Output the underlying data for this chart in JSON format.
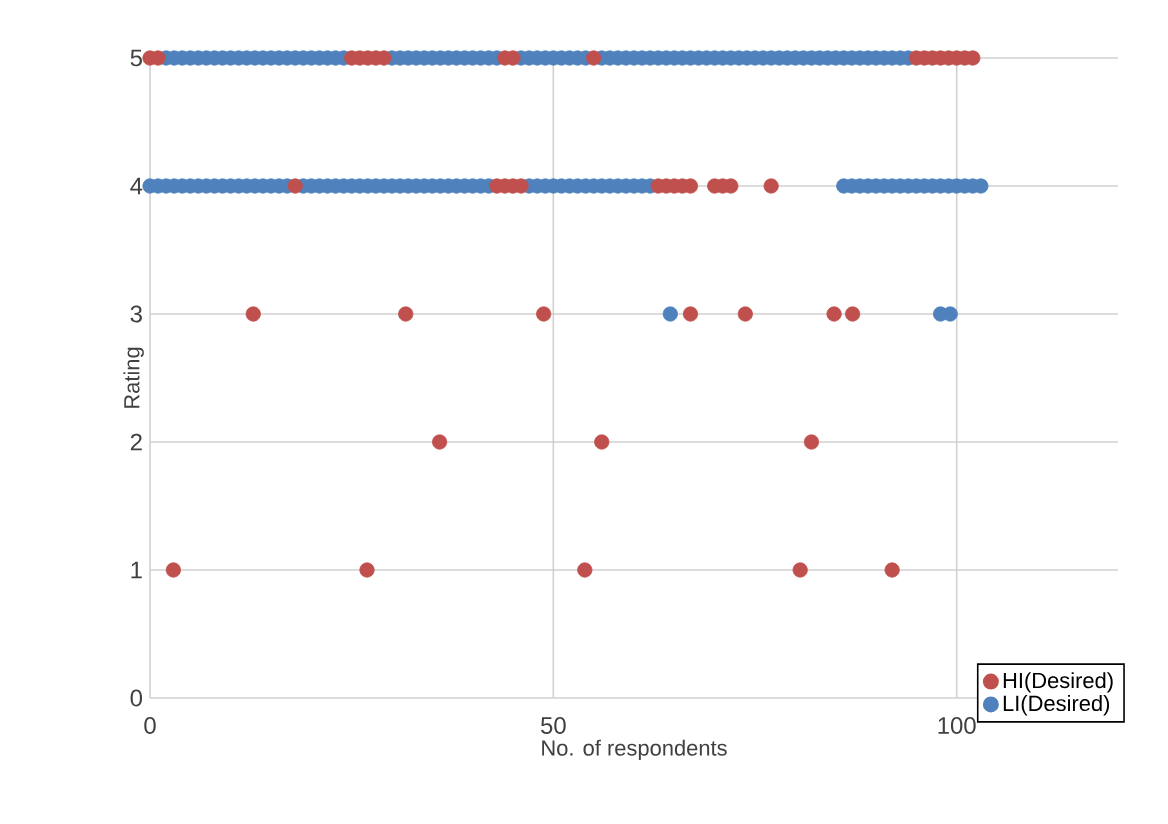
{
  "chart_data": {
    "type": "scatter",
    "xlabel": "No. of respondents",
    "ylabel": "Rating",
    "xlim": [
      0,
      120
    ],
    "xticks": [
      0,
      50,
      100
    ],
    "ylim": [
      0,
      5
    ],
    "yticks": [
      0,
      1,
      2,
      3,
      4,
      5
    ],
    "grid": true,
    "legend": "bottom right",
    "marker": "circle",
    "series": [
      {
        "name": "HI(Desired)",
        "color": "#c0504d",
        "x": [
          0,
          1,
          25,
          26,
          27,
          28,
          29,
          44,
          45,
          55,
          95,
          96,
          97,
          98,
          99,
          100,
          101,
          102,
          18,
          43,
          44,
          45,
          46,
          63,
          64,
          65,
          66,
          67,
          70,
          71,
          72,
          77,
          12.8,
          31.7,
          48.8,
          67,
          73.8,
          84.8,
          87.1,
          35.9,
          56,
          82,
          2.9,
          26.9,
          53.9,
          80.6,
          92
        ],
        "values": [
          5,
          5,
          5,
          5,
          5,
          5,
          5,
          5,
          5,
          5,
          5,
          5,
          5,
          5,
          5,
          5,
          5,
          5,
          4,
          4,
          4,
          4,
          4,
          4,
          4,
          4,
          4,
          4,
          4,
          4,
          4,
          4,
          3,
          3,
          3,
          3,
          3,
          3,
          3,
          2,
          2,
          2,
          1,
          1,
          1,
          1,
          1
        ]
      },
      {
        "name": "LI(Desired)",
        "color": "#4f81bd",
        "x": [
          2,
          3,
          4,
          5,
          6,
          7,
          8,
          9,
          10,
          11,
          12,
          13,
          14,
          15,
          16,
          17,
          18,
          19,
          20,
          21,
          22,
          23,
          24,
          30,
          31,
          32,
          33,
          34,
          35,
          36,
          37,
          38,
          39,
          40,
          41,
          42,
          43,
          46,
          47,
          48,
          49,
          50,
          51,
          52,
          53,
          54,
          56,
          57,
          58,
          59,
          60,
          61,
          62,
          63,
          64,
          65,
          66,
          67,
          68,
          69,
          70,
          71,
          72,
          73,
          74,
          75,
          76,
          77,
          78,
          79,
          80,
          81,
          82,
          83,
          84,
          85,
          86,
          87,
          88,
          89,
          90,
          91,
          92,
          93,
          94,
          0,
          1,
          2,
          3,
          4,
          5,
          6,
          7,
          8,
          9,
          10,
          11,
          12,
          13,
          14,
          15,
          16,
          17,
          19,
          20,
          21,
          22,
          23,
          24,
          25,
          26,
          27,
          28,
          29,
          30,
          31,
          32,
          33,
          34,
          35,
          36,
          37,
          38,
          39,
          40,
          41,
          42,
          47,
          48,
          49,
          50,
          51,
          52,
          53,
          54,
          55,
          56,
          57,
          58,
          59,
          60,
          61,
          62,
          86,
          87,
          88,
          89,
          90,
          91,
          92,
          93,
          94,
          95,
          96,
          97,
          98,
          99,
          100,
          101,
          102,
          103,
          64.5,
          98,
          99.2
        ],
        "values": [
          5,
          5,
          5,
          5,
          5,
          5,
          5,
          5,
          5,
          5,
          5,
          5,
          5,
          5,
          5,
          5,
          5,
          5,
          5,
          5,
          5,
          5,
          5,
          5,
          5,
          5,
          5,
          5,
          5,
          5,
          5,
          5,
          5,
          5,
          5,
          5,
          5,
          5,
          5,
          5,
          5,
          5,
          5,
          5,
          5,
          5,
          5,
          5,
          5,
          5,
          5,
          5,
          5,
          5,
          5,
          5,
          5,
          5,
          5,
          5,
          5,
          5,
          5,
          5,
          5,
          5,
          5,
          5,
          5,
          5,
          5,
          5,
          5,
          5,
          5,
          5,
          5,
          5,
          5,
          5,
          5,
          5,
          5,
          5,
          5,
          4,
          4,
          4,
          4,
          4,
          4,
          4,
          4,
          4,
          4,
          4,
          4,
          4,
          4,
          4,
          4,
          4,
          4,
          4,
          4,
          4,
          4,
          4,
          4,
          4,
          4,
          4,
          4,
          4,
          4,
          4,
          4,
          4,
          4,
          4,
          4,
          4,
          4,
          4,
          4,
          4,
          4,
          4,
          4,
          4,
          4,
          4,
          4,
          4,
          4,
          4,
          4,
          4,
          4,
          4,
          4,
          4,
          4,
          4,
          4,
          4,
          4,
          4,
          4,
          4,
          4,
          4,
          4,
          4,
          4,
          4,
          4,
          4,
          4,
          4,
          4,
          3,
          3,
          3
        ]
      }
    ]
  }
}
